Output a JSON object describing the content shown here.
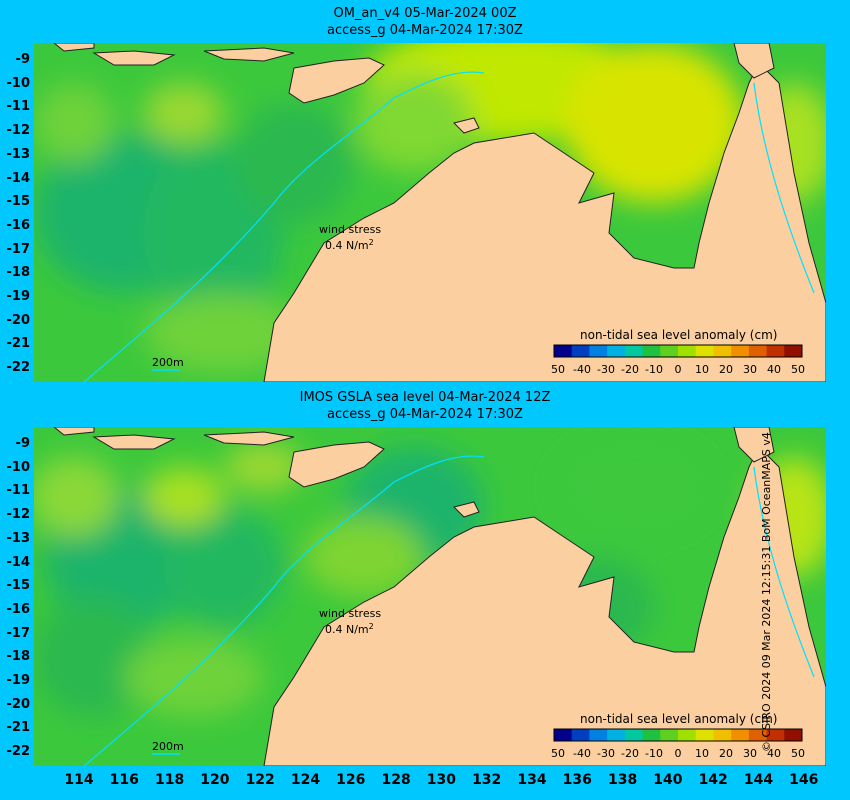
{
  "top": {
    "title_line1": "OM_an_v4  05-Mar-2024 00Z",
    "title_line2": "access_g 04-Mar-2024 17:30Z"
  },
  "bottom": {
    "title_line1": "IMOS GSLA sea level  04-Mar-2024 12Z",
    "title_line2": "access_g 04-Mar-2024 17:30Z"
  },
  "lat_labels": [
    "-9",
    "-10",
    "-11",
    "-12",
    "-13",
    "-14",
    "-15",
    "-16",
    "-17",
    "-18",
    "-19",
    "-20",
    "-21",
    "-22"
  ],
  "lon_labels": [
    "114",
    "116",
    "118",
    "120",
    "122",
    "124",
    "126",
    "128",
    "130",
    "132",
    "134",
    "136",
    "138",
    "140",
    "142",
    "144",
    "146"
  ],
  "colorbar": {
    "title": "non-tidal sea level anomaly (cm)",
    "ticks": [
      "50",
      "-40",
      "-30",
      "-20",
      "-10",
      "0",
      "10",
      "20",
      "30",
      "40",
      "50"
    ],
    "colors": [
      "#00008b",
      "#0040c0",
      "#0080e0",
      "#00b0e0",
      "#00c8a0",
      "#20c040",
      "#60d020",
      "#a0e000",
      "#e0e000",
      "#f0c000",
      "#f09000",
      "#e06000",
      "#c03000",
      "#901000"
    ]
  },
  "wind_stress": {
    "label": "wind stress",
    "value": "0.4 N/m",
    "unit_sup": "2"
  },
  "isobath_label": "200m",
  "credit": "© CSIRO 2024   09 Mar 2024 12:15:31 BoM OceanMAPS v4",
  "colors": {
    "background": "#00c8ff",
    "land": "#fbcf9f",
    "ocean_base": "#39c639",
    "isobath": "#00e0ff"
  }
}
